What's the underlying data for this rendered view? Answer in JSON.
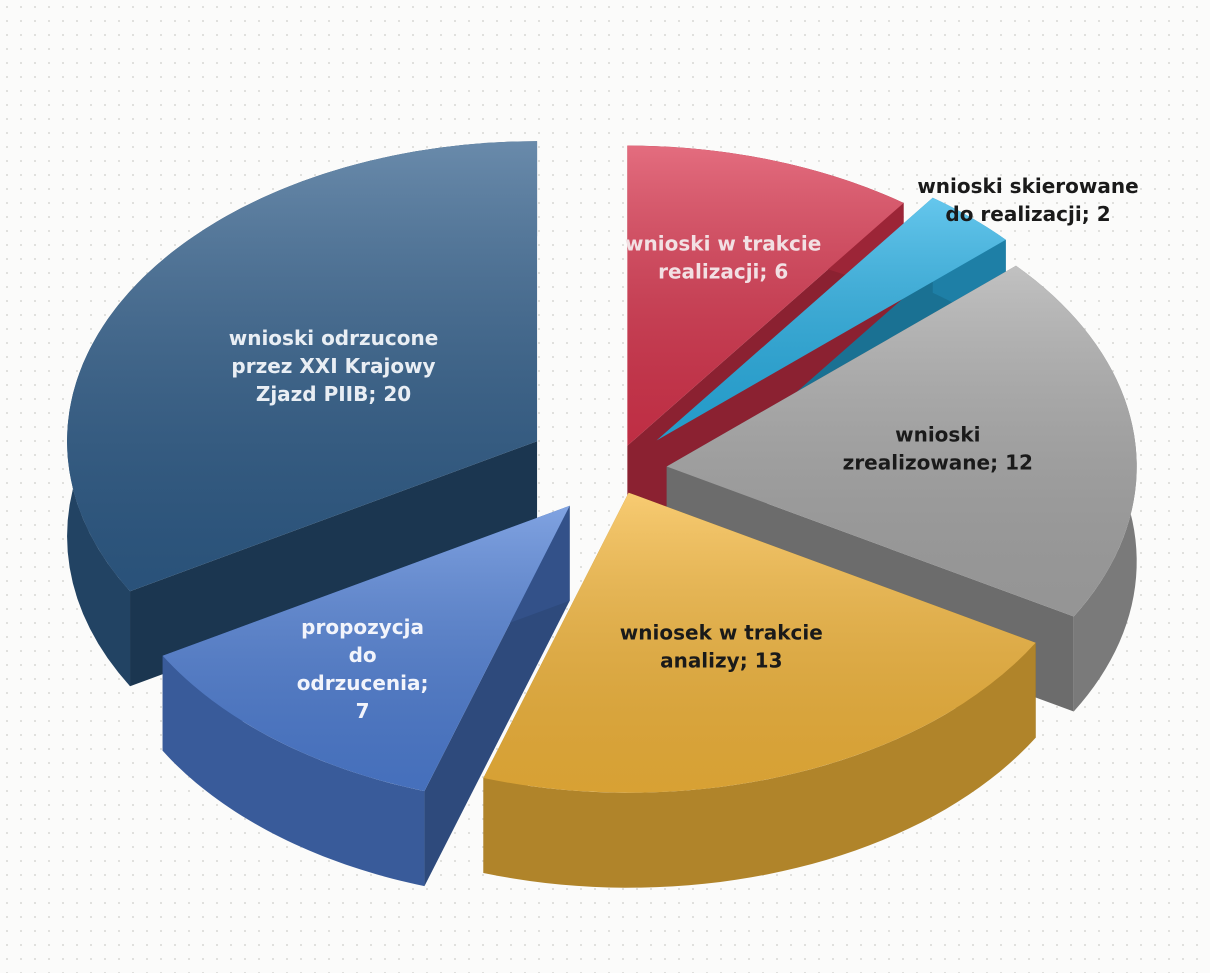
{
  "chart_data": {
    "type": "pie",
    "style": "3d-exploded",
    "slices": [
      {
        "label": "wnioski w trakcie realizacji; 6",
        "category": "wnioski w trakcie realizacji",
        "value": 6,
        "color": "#d9344d",
        "label_color": "#f2e0e3"
      },
      {
        "label": "wnioski skierowane do realizacji; 2",
        "category": "wnioski skierowane do realizacji",
        "value": 2,
        "color": "#29b1e6",
        "label_color": "#1a1a1a"
      },
      {
        "label": "wnioski zrealizowane; 12",
        "category": "wnioski zrealizowane",
        "value": 12,
        "color": "#a9a9a9",
        "label_color": "#1a1a1a"
      },
      {
        "label": "wniosek w trakcie analizy; 13",
        "category": "wniosek w trakcie analizy",
        "value": 13,
        "color": "#f5b73b",
        "label_color": "#1a1a1a"
      },
      {
        "label": "propozycja do odrzucenia; 7",
        "category": "propozycja do odrzucenia",
        "value": 7,
        "color": "#4f7fd6",
        "label_color": "#f2f4fb"
      },
      {
        "label": "wnioski odrzucone przez XXI  Krajowy Zjazd PIIB; 20",
        "category": "wnioski odrzucone przez XXI  Krajowy Zjazd PIIB",
        "value": 20,
        "color": "#2f5d8a",
        "label_color": "#e9eef4"
      }
    ],
    "legend": "none"
  }
}
